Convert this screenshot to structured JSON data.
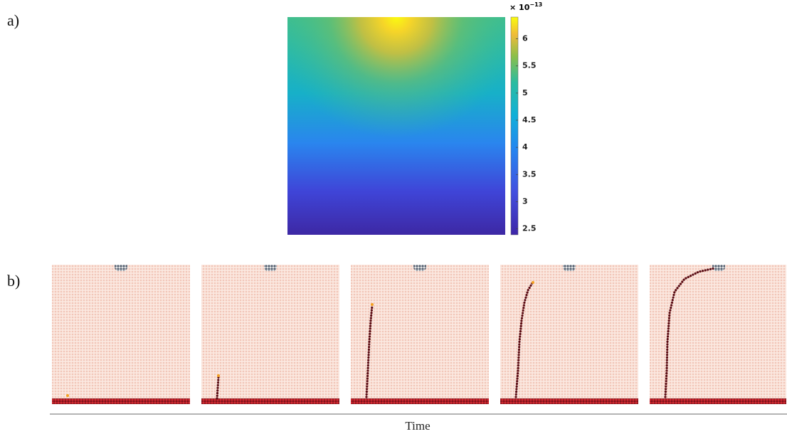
{
  "panel_a": {
    "label": "a)",
    "colorbar": {
      "lim": [
        2.39,
        6.4
      ],
      "ticks": [
        2.5,
        3,
        3.5,
        4,
        4.5,
        5,
        5.5,
        6
      ],
      "scale_base": "× 10",
      "scale_exponent": "−13"
    }
  },
  "panel_b": {
    "label": "b)",
    "axis_label": "Time"
  }
}
